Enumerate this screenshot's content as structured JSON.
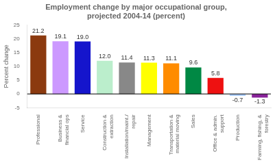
{
  "chart_data": {
    "type": "bar",
    "title": "Employment change by major occupational group,\nprojected 2004-14 (percent)",
    "ylabel": "Percent change",
    "categories": [
      "Professional",
      "Business &\nfinancial ops",
      "Service",
      "Construction &\nextraction",
      "Installation/maint./\nrepair",
      "Management",
      "Transportation &\nmaterial moving",
      "Sales",
      "Office & admin.\nsupport",
      "Production",
      "Farming, fishing, &\nforestry"
    ],
    "values": [
      21.2,
      19.1,
      19.0,
      12.0,
      11.4,
      11.3,
      11.1,
      9.6,
      5.8,
      -0.7,
      -1.3
    ],
    "value_labels": [
      "21.2",
      "19.1",
      "19.0",
      "12.0",
      "11.4",
      "11.3",
      "11.1",
      "9.6",
      "5.8",
      "-0.7",
      "-1.3"
    ],
    "colors": [
      "#8B3A0F",
      "#CC99FF",
      "#1515CC",
      "#BBEECC",
      "#888888",
      "#FFFF00",
      "#FF8C00",
      "#008844",
      "#EE1111",
      "#AACCFF",
      "#882299"
    ],
    "ylim": [
      -5,
      25
    ],
    "yticks": [
      -5,
      0,
      5,
      10,
      15,
      20,
      25
    ],
    "grid": false,
    "data_labels": true
  }
}
